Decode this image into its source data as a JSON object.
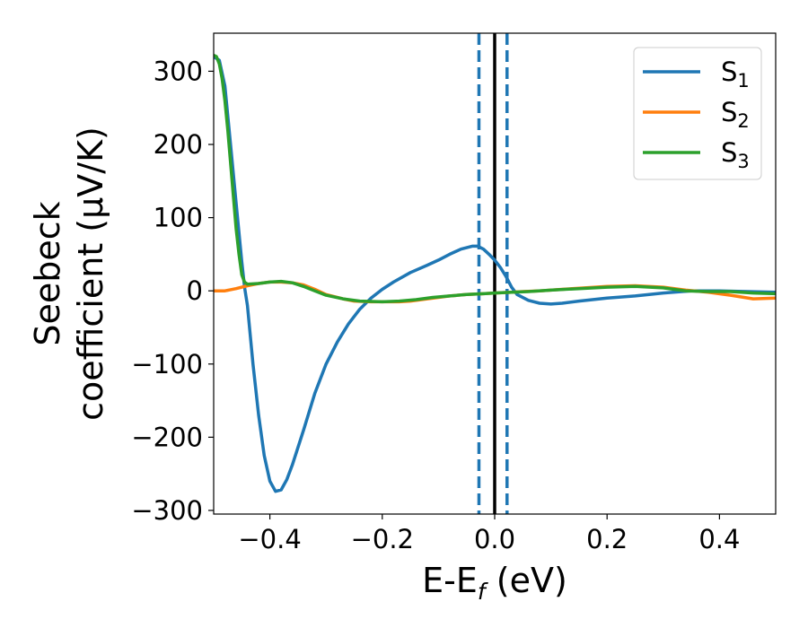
{
  "chart_data": {
    "type": "line",
    "xlabel": {
      "main": "E-E",
      "sub": "f",
      "unit": " (eV)"
    },
    "ylabel": {
      "line1": "Seebeck",
      "line2": "coefficient  (μV/K)"
    },
    "xlim": [
      -0.5,
      0.5
    ],
    "ylim": [
      -305,
      352
    ],
    "xticks": [
      {
        "v": -0.4,
        "label": "−0.4"
      },
      {
        "v": -0.2,
        "label": "−0.2"
      },
      {
        "v": 0.0,
        "label": "0.0"
      },
      {
        "v": 0.2,
        "label": "0.2"
      },
      {
        "v": 0.4,
        "label": "0.4"
      }
    ],
    "yticks": [
      {
        "v": -300,
        "label": "−300"
      },
      {
        "v": -200,
        "label": "−200"
      },
      {
        "v": -100,
        "label": "−100"
      },
      {
        "v": 0,
        "label": "0"
      },
      {
        "v": 100,
        "label": "100"
      },
      {
        "v": 200,
        "label": "200"
      },
      {
        "v": 300,
        "label": "300"
      }
    ],
    "grid": false,
    "legend": "top-right",
    "vlines": [
      {
        "x": -0.028,
        "color": "#1f77b4",
        "style": "dashed"
      },
      {
        "x": 0.0,
        "color": "#000000",
        "style": "solid"
      },
      {
        "x": 0.022,
        "color": "#1f77b4",
        "style": "dashed"
      }
    ],
    "series": [
      {
        "name": "S",
        "sub": "1",
        "color": "#1f77b4",
        "points": [
          [
            -0.5,
            320
          ],
          [
            -0.49,
            315
          ],
          [
            -0.48,
            280
          ],
          [
            -0.47,
            200
          ],
          [
            -0.46,
            120
          ],
          [
            -0.45,
            40
          ],
          [
            -0.445,
            5
          ],
          [
            -0.44,
            -20
          ],
          [
            -0.43,
            -100
          ],
          [
            -0.42,
            -170
          ],
          [
            -0.41,
            -225
          ],
          [
            -0.4,
            -260
          ],
          [
            -0.39,
            -274
          ],
          [
            -0.38,
            -272
          ],
          [
            -0.37,
            -258
          ],
          [
            -0.36,
            -238
          ],
          [
            -0.34,
            -190
          ],
          [
            -0.32,
            -140
          ],
          [
            -0.3,
            -100
          ],
          [
            -0.28,
            -70
          ],
          [
            -0.26,
            -45
          ],
          [
            -0.24,
            -25
          ],
          [
            -0.22,
            -10
          ],
          [
            -0.2,
            2
          ],
          [
            -0.18,
            12
          ],
          [
            -0.15,
            25
          ],
          [
            -0.12,
            35
          ],
          [
            -0.1,
            42
          ],
          [
            -0.08,
            50
          ],
          [
            -0.06,
            57
          ],
          [
            -0.04,
            61
          ],
          [
            -0.03,
            61
          ],
          [
            -0.02,
            57
          ],
          [
            -0.01,
            50
          ],
          [
            0.0,
            42
          ],
          [
            0.01,
            32
          ],
          [
            0.02,
            20
          ],
          [
            0.03,
            5
          ],
          [
            0.04,
            -5
          ],
          [
            0.06,
            -13
          ],
          [
            0.08,
            -17
          ],
          [
            0.1,
            -18
          ],
          [
            0.12,
            -17
          ],
          [
            0.15,
            -14
          ],
          [
            0.2,
            -10
          ],
          [
            0.25,
            -7
          ],
          [
            0.3,
            -3
          ],
          [
            0.35,
            0
          ],
          [
            0.4,
            0
          ],
          [
            0.45,
            -1
          ],
          [
            0.5,
            -2
          ]
        ]
      },
      {
        "name": "S",
        "sub": "2",
        "color": "#ff7f0e",
        "points": [
          [
            -0.5,
            0
          ],
          [
            -0.48,
            0
          ],
          [
            -0.46,
            3
          ],
          [
            -0.44,
            7
          ],
          [
            -0.42,
            10
          ],
          [
            -0.4,
            12
          ],
          [
            -0.38,
            12
          ],
          [
            -0.36,
            11
          ],
          [
            -0.34,
            8
          ],
          [
            -0.32,
            2
          ],
          [
            -0.3,
            -5
          ],
          [
            -0.27,
            -11
          ],
          [
            -0.25,
            -14
          ],
          [
            -0.22,
            -15
          ],
          [
            -0.2,
            -15
          ],
          [
            -0.17,
            -15
          ],
          [
            -0.15,
            -14
          ],
          [
            -0.12,
            -11
          ],
          [
            -0.1,
            -9
          ],
          [
            -0.08,
            -7
          ],
          [
            -0.05,
            -5
          ],
          [
            -0.02,
            -4
          ],
          [
            0.0,
            -3
          ],
          [
            0.03,
            -2
          ],
          [
            0.05,
            -1
          ],
          [
            0.08,
            0
          ],
          [
            0.12,
            2
          ],
          [
            0.16,
            4
          ],
          [
            0.2,
            6
          ],
          [
            0.25,
            7
          ],
          [
            0.3,
            5
          ],
          [
            0.34,
            1
          ],
          [
            0.38,
            -2
          ],
          [
            0.42,
            -6
          ],
          [
            0.46,
            -11
          ],
          [
            0.5,
            -10
          ]
        ]
      },
      {
        "name": "S",
        "sub": "3",
        "color": "#2ca02c",
        "points": [
          [
            -0.5,
            322
          ],
          [
            -0.495,
            320
          ],
          [
            -0.49,
            310
          ],
          [
            -0.485,
            290
          ],
          [
            -0.48,
            260
          ],
          [
            -0.475,
            220
          ],
          [
            -0.47,
            175
          ],
          [
            -0.465,
            130
          ],
          [
            -0.46,
            85
          ],
          [
            -0.455,
            50
          ],
          [
            -0.45,
            22
          ],
          [
            -0.445,
            12
          ],
          [
            -0.44,
            9
          ],
          [
            -0.42,
            10
          ],
          [
            -0.4,
            12
          ],
          [
            -0.38,
            13
          ],
          [
            -0.36,
            11
          ],
          [
            -0.34,
            6
          ],
          [
            -0.32,
            0
          ],
          [
            -0.3,
            -6
          ],
          [
            -0.27,
            -11
          ],
          [
            -0.24,
            -14
          ],
          [
            -0.2,
            -15
          ],
          [
            -0.17,
            -14
          ],
          [
            -0.14,
            -12
          ],
          [
            -0.11,
            -9
          ],
          [
            -0.08,
            -7
          ],
          [
            -0.05,
            -5
          ],
          [
            -0.02,
            -4
          ],
          [
            0.0,
            -3
          ],
          [
            0.03,
            -2
          ],
          [
            0.06,
            -1
          ],
          [
            0.1,
            1
          ],
          [
            0.15,
            3
          ],
          [
            0.2,
            5
          ],
          [
            0.25,
            6
          ],
          [
            0.3,
            4
          ],
          [
            0.34,
            0
          ],
          [
            0.38,
            -1
          ],
          [
            0.42,
            -1
          ],
          [
            0.46,
            -3
          ],
          [
            0.5,
            -4
          ]
        ]
      }
    ]
  }
}
